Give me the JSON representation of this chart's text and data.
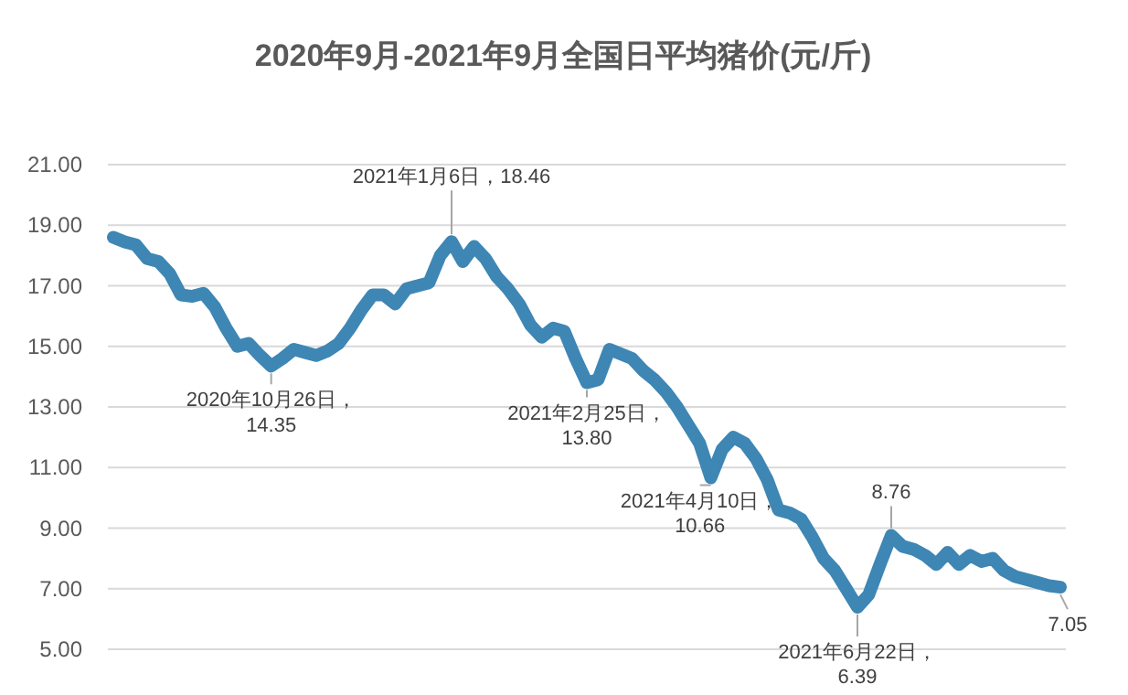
{
  "chart_data": {
    "type": "line",
    "title": "2020年9月-2021年9月全国日平均猪价(元/斤)",
    "categories": [
      null,
      null,
      null,
      null,
      null,
      null,
      null,
      null,
      null,
      null,
      null,
      null,
      null,
      null,
      null,
      null,
      null,
      null,
      null,
      null,
      null,
      null,
      null,
      null,
      null,
      null,
      null,
      null,
      null,
      null,
      null,
      null,
      null,
      null,
      null,
      null,
      null,
      null,
      null,
      null,
      null,
      null,
      null,
      null,
      null,
      null,
      null,
      null,
      null,
      null,
      null,
      null,
      null,
      null,
      null,
      null,
      null,
      null,
      null,
      null,
      null,
      null,
      null,
      null,
      null,
      null,
      null,
      null,
      null,
      null,
      null,
      null,
      null,
      null,
      null,
      null,
      null,
      null,
      null,
      null,
      null,
      null,
      null,
      null,
      null
    ],
    "series": [
      {
        "color": "#3e86b4",
        "values": [
          18.6,
          18.45,
          18.35,
          17.9,
          17.8,
          17.4,
          16.7,
          16.65,
          16.75,
          16.3,
          15.6,
          15.0,
          15.1,
          14.7,
          14.35,
          14.6,
          14.9,
          14.8,
          14.7,
          14.85,
          15.1,
          15.6,
          16.2,
          16.7,
          16.7,
          16.4,
          16.9,
          17.0,
          17.1,
          18.0,
          18.46,
          17.8,
          18.3,
          17.9,
          17.3,
          16.9,
          16.4,
          15.7,
          15.3,
          15.6,
          15.5,
          14.6,
          13.8,
          13.9,
          14.9,
          14.75,
          14.6,
          14.2,
          13.9,
          13.5,
          13.0,
          12.4,
          11.8,
          10.66,
          11.6,
          12.0,
          11.8,
          11.3,
          10.6,
          9.6,
          9.5,
          9.3,
          8.7,
          8.0,
          7.6,
          7.0,
          6.39,
          6.8,
          7.8,
          8.76,
          8.4,
          8.3,
          8.1,
          7.8,
          8.2,
          7.8,
          8.1,
          7.9,
          8.0,
          7.6,
          7.4,
          7.3,
          7.2,
          7.1,
          7.05
        ]
      }
    ],
    "ylim": [
      5,
      21
    ],
    "yticks": [
      {
        "value": 5,
        "label": "5.00"
      },
      {
        "value": 7,
        "label": "7.00"
      },
      {
        "value": 9,
        "label": "9.00"
      },
      {
        "value": 11,
        "label": "11.00"
      },
      {
        "value": 13,
        "label": "13.00"
      },
      {
        "value": 15,
        "label": "15.00"
      },
      {
        "value": 17,
        "label": "17.00"
      },
      {
        "value": 19,
        "label": "19.00"
      },
      {
        "value": 21,
        "label": "21.00"
      }
    ],
    "grid": "y",
    "line_style": "solid",
    "annotations": [
      {
        "text": "2020年10月26日，\n14.35",
        "y": 14.35
      },
      {
        "text": "2021年1月6日，18.46",
        "y": 18.46
      },
      {
        "text": "2021年2月25日，\n13.80",
        "y": 13.8
      },
      {
        "text": "2021年4月10日，\n10.66",
        "y": 10.66
      },
      {
        "text": "2021年6月22日，\n6.39",
        "y": 6.39
      },
      {
        "text": "8.76",
        "y": 8.76
      },
      {
        "text": "7.05",
        "y": 7.05
      }
    ]
  }
}
